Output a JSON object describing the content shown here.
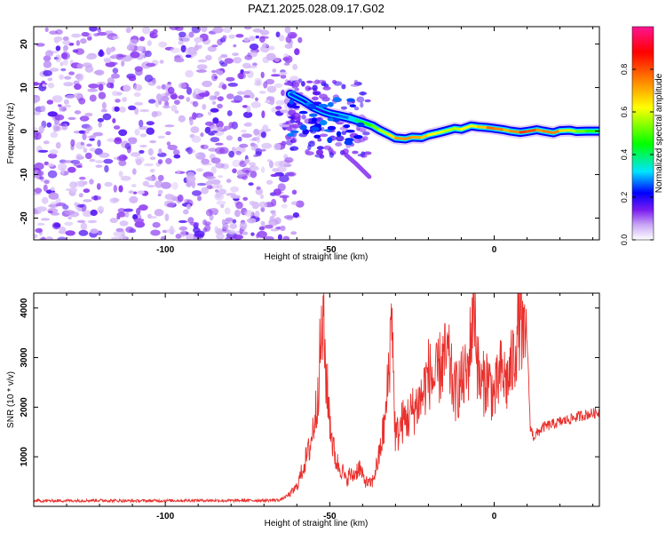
{
  "figure_title": "PAZ1.2025.028.09.17.G02",
  "chart_data": [
    {
      "type": "heatmap",
      "title": "PAZ1.2025.028.09.17.G02",
      "xlabel": "Height of straight line (km)",
      "ylabel": "Frequency (Hz)",
      "xlim": [
        -140,
        32
      ],
      "ylim": [
        -25,
        24
      ],
      "x_ticks": [
        -100,
        -50,
        0
      ],
      "x_tick_labels": [
        "-100",
        "-50",
        "0"
      ],
      "y_ticks": [
        -20,
        -10,
        0,
        10,
        20
      ],
      "y_tick_labels": [
        "-20",
        "-10",
        "0",
        "10",
        "20"
      ],
      "colorbar": {
        "label": "Normalized spectral amplitude",
        "range": [
          0,
          1
        ],
        "ticks": [
          0,
          0.2,
          0.4,
          0.6,
          0.8
        ],
        "tick_labels": [
          "0.0",
          "0.2",
          "0.4",
          "0.6",
          "0.8"
        ],
        "colormap": [
          "#ffffff",
          "#c9a6f5",
          "#7a1cf0",
          "#0000ff",
          "#00e5ff",
          "#00ff00",
          "#ffff00",
          "#ff8000",
          "#ff0000",
          "#ff1493"
        ]
      },
      "noise_region_x": [
        -140,
        -63
      ],
      "signal_track": {
        "x": [
          -62,
          -58,
          -55,
          -52,
          -50,
          -47,
          -44,
          -42,
          -40,
          -37,
          -35,
          -32,
          -30,
          -27,
          -25,
          -22,
          -20,
          -17,
          -15,
          -12,
          -10,
          -7,
          -5,
          -2,
          0,
          3,
          5,
          8,
          10,
          13,
          15,
          18,
          20,
          23,
          25,
          28,
          32
        ],
        "y": [
          8.5,
          7.0,
          5.5,
          4.5,
          4.0,
          3.5,
          3.0,
          2.5,
          2.0,
          1.2,
          0.3,
          -0.8,
          -1.6,
          -1.8,
          -1.4,
          -1.5,
          -0.9,
          -0.4,
          0.0,
          0.6,
          0.4,
          1.2,
          1.0,
          0.8,
          0.6,
          0.3,
          0.0,
          -0.3,
          -0.1,
          0.3,
          0.0,
          -0.4,
          0.1,
          0.2,
          -0.1,
          0.0,
          0.0
        ],
        "amplitude": [
          0.25,
          0.22,
          0.2,
          0.18,
          0.22,
          0.25,
          0.28,
          0.35,
          0.45,
          0.5,
          0.55,
          0.6,
          0.7,
          0.75,
          0.72,
          0.7,
          0.65,
          0.6,
          0.6,
          0.55,
          0.6,
          0.65,
          0.6,
          0.75,
          0.8,
          0.7,
          0.68,
          0.8,
          0.85,
          0.75,
          0.7,
          0.8,
          0.7,
          0.6,
          0.55,
          0.5,
          0.45
        ]
      },
      "branch_track": {
        "x": [
          -45,
          -42,
          -40,
          -38
        ],
        "y": [
          -5.5,
          -7.5,
          -9.0,
          -10.5
        ]
      }
    },
    {
      "type": "line",
      "xlabel": "Height of straight line (km)",
      "ylabel": "SNR (10 * v/v)",
      "xlim": [
        -140,
        32
      ],
      "ylim": [
        0,
        4300
      ],
      "x_ticks": [
        -100,
        -50,
        0
      ],
      "x_tick_labels": [
        "-100",
        "-50",
        "0"
      ],
      "y_ticks": [
        1000,
        2000,
        3000,
        4000
      ],
      "y_tick_labels": [
        "1000",
        "2000",
        "3000",
        "4000"
      ],
      "line_color": "#e8302c",
      "series": [
        {
          "x": [
            -140,
            -130,
            -120,
            -110,
            -100,
            -90,
            -80,
            -70,
            -65,
            -62,
            -60,
            -58,
            -56,
            -54,
            -53,
            -52,
            -51,
            -50,
            -49,
            -48,
            -47,
            -46,
            -45,
            -44,
            -43,
            -42,
            -41,
            -40,
            -39,
            -38,
            -37,
            -35,
            -33,
            -32,
            -31,
            -30.5,
            -30,
            -29,
            -28,
            -26,
            -24,
            -22,
            -20,
            -18,
            -16,
            -14,
            -13,
            -12,
            -10,
            -8,
            -7,
            -6,
            -5,
            -4,
            -2,
            0,
            2,
            4,
            6,
            7,
            8,
            9,
            10,
            11,
            12,
            15,
            20,
            25,
            28,
            32
          ],
          "y": [
            110,
            115,
            120,
            110,
            115,
            120,
            115,
            120,
            130,
            250,
            400,
            800,
            1200,
            2000,
            3000,
            3700,
            2500,
            1800,
            1200,
            900,
            800,
            700,
            500,
            650,
            600,
            700,
            800,
            600,
            500,
            450,
            500,
            1000,
            1800,
            2800,
            4150,
            2200,
            1400,
            1500,
            1700,
            1800,
            2000,
            2200,
            2700,
            2500,
            2900,
            3000,
            2600,
            2300,
            2500,
            2700,
            3500,
            4200,
            2800,
            2400,
            2600,
            2200,
            2700,
            2500,
            3000,
            3500,
            3900,
            3200,
            3400,
            1600,
            1400,
            1600,
            1700,
            1800,
            1850,
            1900
          ]
        }
      ]
    }
  ]
}
